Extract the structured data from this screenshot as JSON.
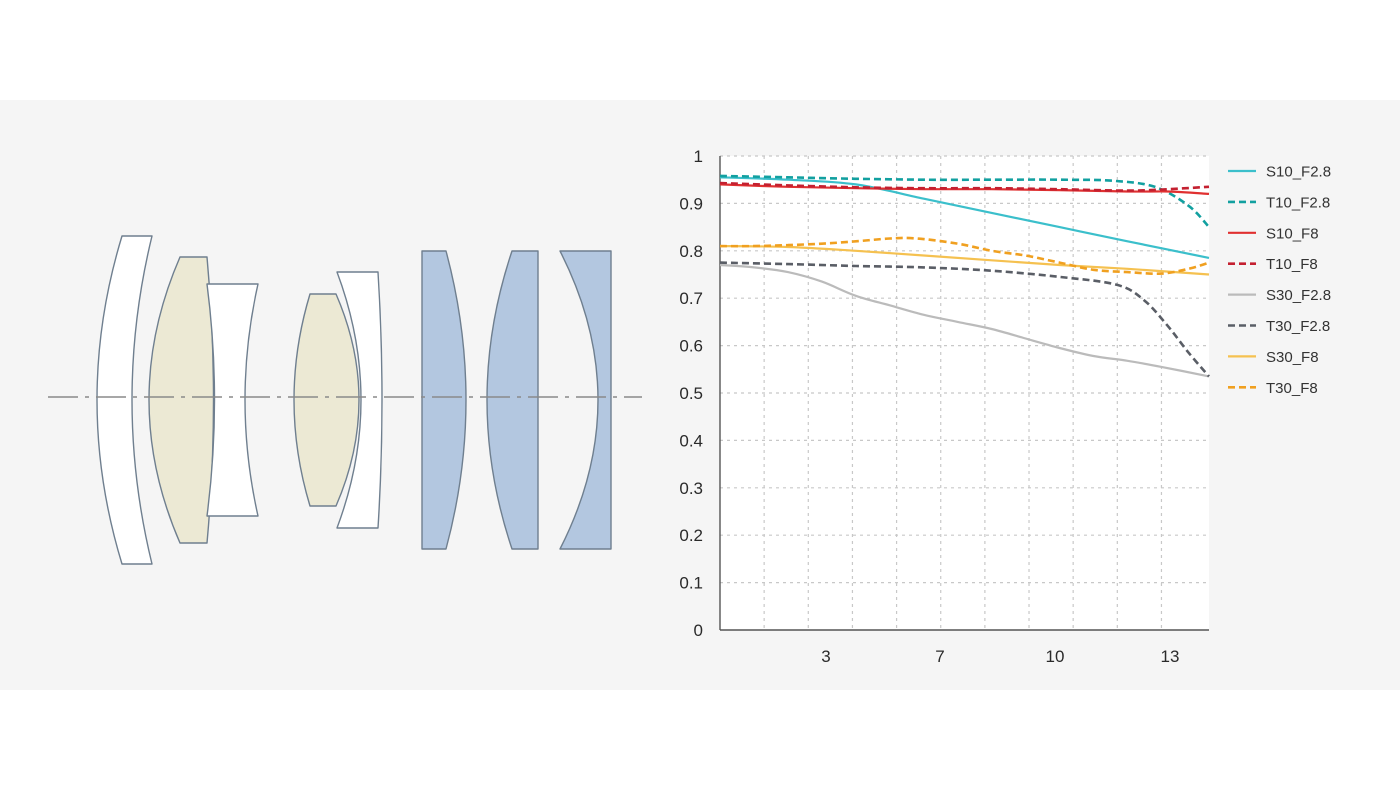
{
  "colors": {
    "background": "#ffffff",
    "panel": "#f5f5f5",
    "plot_background": "#ffffff",
    "grid": "#c8c8c8",
    "axis": "#555555",
    "lens_outline": "#6f7f8f",
    "lens_clear": "#ffffff",
    "lens_cream": "#ece9d4",
    "lens_blue": "#b3c7e0",
    "optical_axis": "#8a8a8a"
  },
  "lens_diagram": {
    "elements": [
      {
        "name": "element-1",
        "fill": "lens_clear"
      },
      {
        "name": "element-2",
        "fill": "lens_cream"
      },
      {
        "name": "element-3",
        "fill": "lens_clear"
      },
      {
        "name": "element-4",
        "fill": "lens_cream"
      },
      {
        "name": "element-5",
        "fill": "lens_clear"
      },
      {
        "name": "element-6",
        "fill": "lens_blue"
      },
      {
        "name": "element-7",
        "fill": "lens_blue"
      },
      {
        "name": "element-8",
        "fill": "lens_blue"
      }
    ]
  },
  "chart_data": {
    "type": "line",
    "title": "",
    "xlabel": "",
    "ylabel": "",
    "xlim": [
      0,
      14.4
    ],
    "ylim": [
      0,
      1
    ],
    "x_ticks": [
      3,
      7,
      10,
      13
    ],
    "x_grid_lines": [
      1.3,
      2.6,
      3.9,
      5.2,
      6.5,
      7.8,
      9.1,
      10.4,
      11.7,
      13.0
    ],
    "y_ticks": [
      0,
      0.1,
      0.2,
      0.3,
      0.4,
      0.5,
      0.6,
      0.7,
      0.8,
      0.9,
      1
    ],
    "y_tick_labels": [
      "0",
      "0.1",
      "0.2",
      "0.3",
      "0.4",
      "0.5",
      "0.6",
      "0.7",
      "0.8",
      "0.9",
      "1"
    ],
    "grid": true,
    "legend_position": "right",
    "series": [
      {
        "name": "S10_F2.8",
        "color": "#3bbfcb",
        "dashed": false,
        "x": [
          0,
          2,
          4,
          6,
          8,
          10,
          12,
          14.4
        ],
        "y": [
          0.955,
          0.95,
          0.94,
          0.91,
          0.88,
          0.85,
          0.82,
          0.785
        ]
      },
      {
        "name": "T10_F2.8",
        "color": "#12a0a0",
        "dashed": true,
        "x": [
          0,
          2,
          4,
          6,
          8,
          10,
          11.5,
          12.8,
          13.8,
          14.4
        ],
        "y": [
          0.958,
          0.955,
          0.952,
          0.95,
          0.95,
          0.95,
          0.948,
          0.935,
          0.895,
          0.85
        ]
      },
      {
        "name": "S10_F8",
        "color": "#e03030",
        "dashed": false,
        "x": [
          0,
          2,
          4,
          6,
          8,
          10,
          12,
          13.2,
          14.4
        ],
        "y": [
          0.94,
          0.935,
          0.932,
          0.93,
          0.93,
          0.928,
          0.925,
          0.925,
          0.92
        ]
      },
      {
        "name": "T10_F8",
        "color": "#c42030",
        "dashed": true,
        "x": [
          0,
          2,
          4,
          6,
          8,
          10,
          12,
          13.2,
          14.4
        ],
        "y": [
          0.943,
          0.938,
          0.934,
          0.932,
          0.932,
          0.93,
          0.927,
          0.93,
          0.935
        ]
      },
      {
        "name": "S30_F2.8",
        "color": "#bbbbbb",
        "dashed": false,
        "x": [
          0,
          1,
          2,
          3,
          4,
          5,
          6,
          7,
          8,
          9,
          10,
          11,
          12,
          13,
          14.4
        ],
        "y": [
          0.77,
          0.765,
          0.755,
          0.735,
          0.705,
          0.685,
          0.665,
          0.65,
          0.635,
          0.615,
          0.595,
          0.578,
          0.568,
          0.555,
          0.535
        ]
      },
      {
        "name": "T30_F2.8",
        "color": "#5a5e66",
        "dashed": true,
        "x": [
          0,
          2,
          4,
          6,
          8,
          10,
          11.7,
          12.5,
          13.2,
          13.8,
          14.4
        ],
        "y": [
          0.775,
          0.772,
          0.768,
          0.765,
          0.758,
          0.745,
          0.728,
          0.695,
          0.64,
          0.585,
          0.535
        ]
      },
      {
        "name": "S30_F8",
        "color": "#f5c150",
        "dashed": false,
        "x": [
          0,
          2,
          4,
          6,
          8,
          10,
          12,
          14.4
        ],
        "y": [
          0.81,
          0.808,
          0.8,
          0.79,
          0.78,
          0.77,
          0.762,
          0.75
        ]
      },
      {
        "name": "T30_F8",
        "color": "#f0a020",
        "dashed": true,
        "x": [
          0,
          1,
          2,
          3,
          4,
          5,
          5.8,
          7,
          8,
          9,
          10,
          11,
          12,
          13,
          13.8,
          14.4
        ],
        "y": [
          0.81,
          0.81,
          0.812,
          0.815,
          0.82,
          0.826,
          0.826,
          0.815,
          0.8,
          0.79,
          0.775,
          0.76,
          0.755,
          0.752,
          0.762,
          0.775
        ]
      }
    ]
  }
}
